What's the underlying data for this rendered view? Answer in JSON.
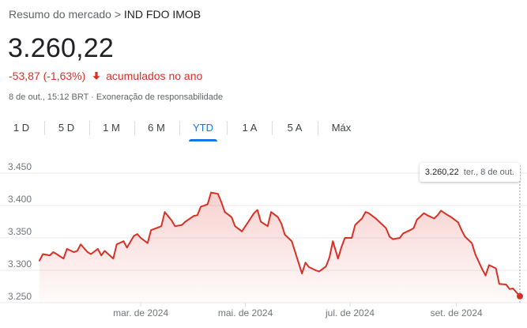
{
  "breadcrumb": {
    "prefix": "Resumo do mercado",
    "separator": ">",
    "current": "IND FDO IMOB"
  },
  "quote": {
    "price": "3.260,22",
    "change": "-53,87 (-1,63%)",
    "change_suffix": "acumulados no ano",
    "meta": "8 de out., 15:12 BRT · Exoneração de responsabilidade"
  },
  "tabs": [
    {
      "label": "1 D",
      "active": false
    },
    {
      "label": "5 D",
      "active": false
    },
    {
      "label": "1 M",
      "active": false
    },
    {
      "label": "6 M",
      "active": false
    },
    {
      "label": "YTD",
      "active": true
    },
    {
      "label": "1 A",
      "active": false
    },
    {
      "label": "5 A",
      "active": false
    },
    {
      "label": "Máx",
      "active": false
    }
  ],
  "tooltip": {
    "value": "3.260,22",
    "date": "ter., 8 de out."
  },
  "colors": {
    "line": "#d93025",
    "accent": "#1a73e8",
    "negative": "#d93025"
  },
  "icons": {
    "change_arrow": "arrow-down-icon"
  },
  "chart_data": {
    "type": "area",
    "x_unit": "date",
    "ylim": [
      3250,
      3450
    ],
    "yticks": [
      3450,
      3400,
      3350,
      3300,
      3250
    ],
    "ytick_labels": [
      "3.450",
      "3.400",
      "3.350",
      "3.300",
      "3.250"
    ],
    "xticks": [
      "2024-03-01",
      "2024-05-01",
      "2024-07-01",
      "2024-09-01"
    ],
    "xtick_labels": [
      "mar. de 2024",
      "mai. de 2024",
      "jul. de 2024",
      "set. de 2024"
    ],
    "grid": true,
    "x": [
      "2024-01-02",
      "2024-01-04",
      "2024-01-08",
      "2024-01-10",
      "2024-01-12",
      "2024-01-16",
      "2024-01-18",
      "2024-01-22",
      "2024-01-24",
      "2024-01-26",
      "2024-01-30",
      "2024-02-01",
      "2024-02-05",
      "2024-02-07",
      "2024-02-09",
      "2024-02-14",
      "2024-02-16",
      "2024-02-20",
      "2024-02-22",
      "2024-02-26",
      "2024-02-28",
      "2024-03-01",
      "2024-03-05",
      "2024-03-07",
      "2024-03-11",
      "2024-03-13",
      "2024-03-15",
      "2024-03-19",
      "2024-03-21",
      "2024-03-25",
      "2024-03-27",
      "2024-04-01",
      "2024-04-03",
      "2024-04-05",
      "2024-04-09",
      "2024-04-11",
      "2024-04-15",
      "2024-04-17",
      "2024-04-19",
      "2024-04-23",
      "2024-04-25",
      "2024-04-29",
      "2024-05-02",
      "2024-05-06",
      "2024-05-08",
      "2024-05-10",
      "2024-05-14",
      "2024-05-16",
      "2024-05-20",
      "2024-05-22",
      "2024-05-24",
      "2024-05-28",
      "2024-06-03",
      "2024-06-05",
      "2024-06-07",
      "2024-06-11",
      "2024-06-13",
      "2024-06-17",
      "2024-06-19",
      "2024-06-21",
      "2024-06-24",
      "2024-06-26",
      "2024-06-28",
      "2024-07-02",
      "2024-07-04",
      "2024-07-08",
      "2024-07-10",
      "2024-07-12",
      "2024-07-16",
      "2024-07-18",
      "2024-07-22",
      "2024-07-24",
      "2024-07-26",
      "2024-07-30",
      "2024-08-01",
      "2024-08-05",
      "2024-08-07",
      "2024-08-09",
      "2024-08-13",
      "2024-08-15",
      "2024-08-19",
      "2024-08-21",
      "2024-08-23",
      "2024-08-27",
      "2024-08-29",
      "2024-09-02",
      "2024-09-04",
      "2024-09-06",
      "2024-09-10",
      "2024-09-12",
      "2024-09-16",
      "2024-09-18",
      "2024-09-20",
      "2024-09-24",
      "2024-09-26",
      "2024-09-30",
      "2024-10-02",
      "2024-10-04",
      "2024-10-08"
    ],
    "series": [
      {
        "values": [
          3315,
          3325,
          3323,
          3328,
          3325,
          3318,
          3333,
          3328,
          3330,
          3340,
          3328,
          3325,
          3333,
          3323,
          3330,
          3318,
          3340,
          3345,
          3335,
          3353,
          3356,
          3350,
          3342,
          3362,
          3366,
          3368,
          3390,
          3377,
          3368,
          3370,
          3375,
          3384,
          3385,
          3398,
          3402,
          3420,
          3418,
          3405,
          3390,
          3382,
          3368,
          3360,
          3372,
          3388,
          3393,
          3375,
          3368,
          3390,
          3382,
          3372,
          3355,
          3345,
          3295,
          3312,
          3305,
          3300,
          3298,
          3306,
          3320,
          3345,
          3318,
          3336,
          3350,
          3350,
          3370,
          3380,
          3390,
          3388,
          3380,
          3375,
          3365,
          3352,
          3348,
          3350,
          3357,
          3362,
          3365,
          3378,
          3388,
          3385,
          3380,
          3385,
          3392,
          3385,
          3382,
          3374,
          3362,
          3352,
          3342,
          3325,
          3302,
          3292,
          3308,
          3303,
          3279,
          3278,
          3271,
          3272,
          3260
        ]
      }
    ]
  }
}
